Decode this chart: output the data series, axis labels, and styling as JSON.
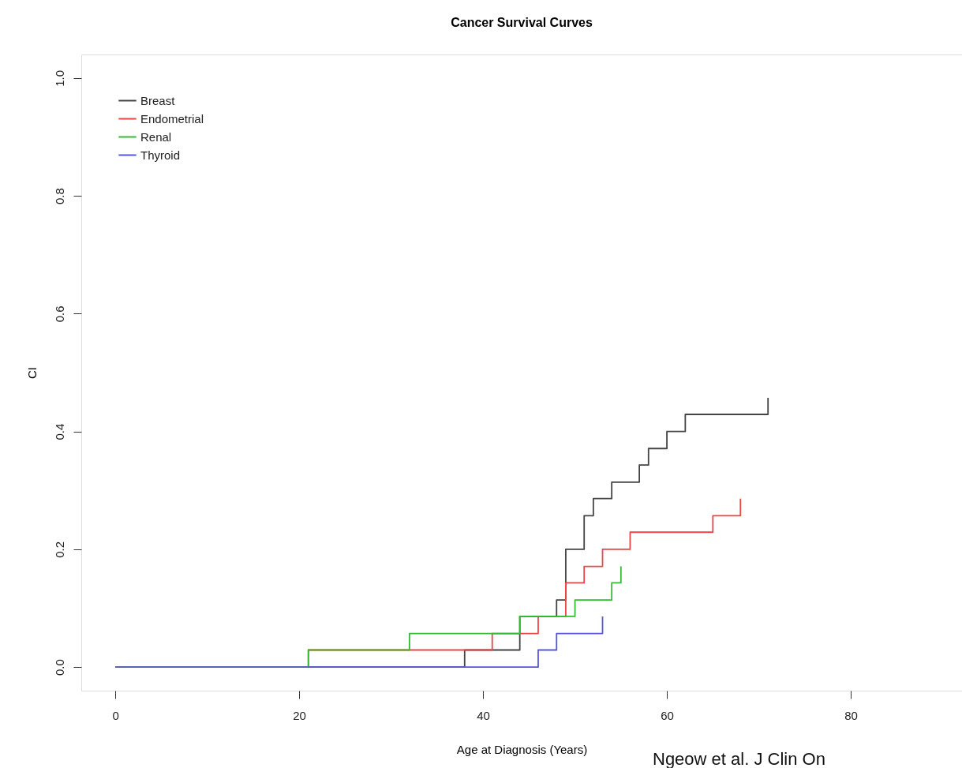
{
  "chart_data": {
    "type": "step",
    "title": "Cancer Survival Curves",
    "xlabel": "Age at Diagnosis (Years)",
    "ylabel": "CI",
    "xlim": [
      -3.7,
      92.1
    ],
    "xticks": [
      0,
      20,
      40,
      60,
      80
    ],
    "ylim": [
      -0.04,
      1.04
    ],
    "yticks": [
      {
        "value": 0,
        "label": "0.0"
      },
      0.2,
      0.4,
      0.6,
      0.8,
      {
        "value": 1,
        "label": "1.0"
      }
    ],
    "grid": false,
    "legend": "top left",
    "line_style": "solid",
    "marker": "none",
    "series": [
      {
        "name": "Breast",
        "color": "#444444",
        "x": [
          0,
          38,
          44,
          48,
          49,
          51,
          52,
          54,
          57,
          58,
          60,
          62,
          71
        ],
        "values": [
          0,
          0.029,
          0.086,
          0.114,
          0.2,
          0.257,
          0.286,
          0.314,
          0.343,
          0.371,
          0.4,
          0.429,
          0.457
        ]
      },
      {
        "name": "Endometrial",
        "color": "#ee4444",
        "x": [
          0,
          21,
          41,
          46,
          49,
          51,
          53,
          56,
          65,
          68
        ],
        "values": [
          0,
          0.029,
          0.057,
          0.086,
          0.143,
          0.171,
          0.2,
          0.229,
          0.257,
          0.286
        ]
      },
      {
        "name": "Renal",
        "color": "#33bb33",
        "x": [
          0,
          21,
          32,
          44,
          50,
          54,
          55
        ],
        "values": [
          0,
          0.029,
          0.057,
          0.086,
          0.114,
          0.143,
          0.171
        ]
      },
      {
        "name": "Thyroid",
        "color": "#5555dd",
        "x": [
          0,
          46,
          48,
          53
        ],
        "values": [
          0,
          0.029,
          0.057,
          0.086
        ]
      }
    ],
    "annotations": [
      "Ngeow et al. J Clin On"
    ]
  }
}
